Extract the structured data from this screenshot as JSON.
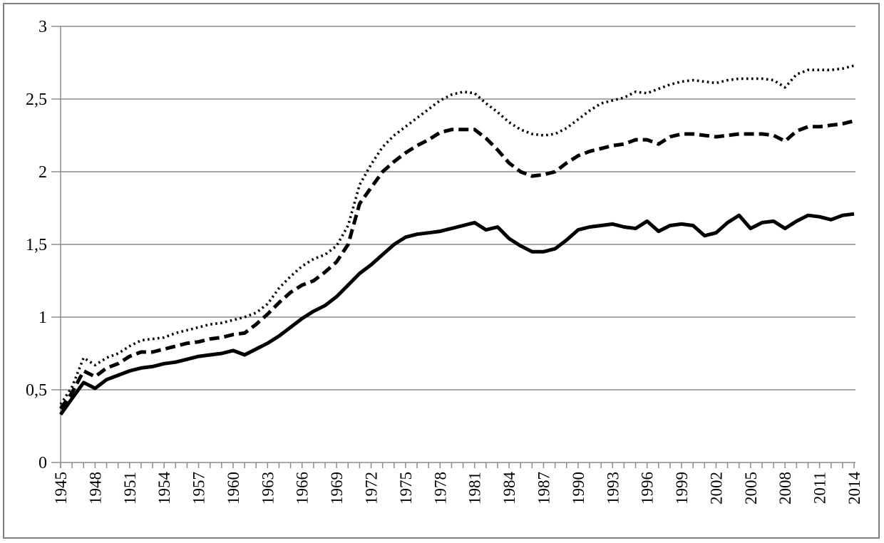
{
  "chart_data": {
    "type": "line",
    "title": "",
    "xlabel": "",
    "ylabel": "",
    "x_start": 1945,
    "x_end": 2014,
    "x_step": 1,
    "x_axis_labels": [
      "1945",
      "1948",
      "1951",
      "1954",
      "1957",
      "1960",
      "1963",
      "1966",
      "1969",
      "1972",
      "1975",
      "1978",
      "1981",
      "1984",
      "1987",
      "1990",
      "1993",
      "1996",
      "1999",
      "2002",
      "2005",
      "2008",
      "2011",
      "2014"
    ],
    "x_label_interval_years": 3,
    "y_axis_labels": [
      "0",
      "0,5",
      "1",
      "1,5",
      "2",
      "2,5",
      "3"
    ],
    "y_gridline_values": [
      0,
      0.5,
      1,
      1.5,
      2,
      2.5,
      3
    ],
    "ylim": [
      0,
      3
    ],
    "grid": true,
    "legend": "none",
    "decimal_separator": ",",
    "series": [
      {
        "name": "solid-line-series",
        "style": "solid",
        "values": [
          0.33,
          0.44,
          0.55,
          0.51,
          0.57,
          0.6,
          0.63,
          0.65,
          0.66,
          0.68,
          0.69,
          0.71,
          0.73,
          0.74,
          0.75,
          0.77,
          0.74,
          0.78,
          0.82,
          0.87,
          0.93,
          0.99,
          1.04,
          1.08,
          1.14,
          1.22,
          1.3,
          1.36,
          1.43,
          1.5,
          1.55,
          1.57,
          1.58,
          1.59,
          1.61,
          1.63,
          1.65,
          1.6,
          1.62,
          1.54,
          1.49,
          1.45,
          1.45,
          1.47,
          1.53,
          1.6,
          1.62,
          1.63,
          1.64,
          1.62,
          1.61,
          1.66,
          1.59,
          1.63,
          1.64,
          1.63,
          1.56,
          1.58,
          1.65,
          1.7,
          1.61,
          1.65,
          1.66,
          1.61,
          1.66,
          1.7,
          1.69,
          1.67,
          1.7,
          1.71
        ]
      },
      {
        "name": "dashed-line-series",
        "style": "dashed",
        "values": [
          0.37,
          0.48,
          0.63,
          0.59,
          0.65,
          0.68,
          0.73,
          0.76,
          0.76,
          0.78,
          0.8,
          0.82,
          0.83,
          0.85,
          0.86,
          0.88,
          0.89,
          0.95,
          1.02,
          1.1,
          1.17,
          1.22,
          1.25,
          1.31,
          1.38,
          1.5,
          1.78,
          1.89,
          2.0,
          2.07,
          2.13,
          2.18,
          2.22,
          2.27,
          2.29,
          2.29,
          2.29,
          2.23,
          2.15,
          2.06,
          2.0,
          1.97,
          1.98,
          2.0,
          2.06,
          2.11,
          2.14,
          2.16,
          2.18,
          2.19,
          2.22,
          2.22,
          2.19,
          2.24,
          2.26,
          2.26,
          2.25,
          2.24,
          2.25,
          2.26,
          2.26,
          2.26,
          2.25,
          2.21,
          2.28,
          2.31,
          2.31,
          2.32,
          2.33,
          2.35
        ]
      },
      {
        "name": "dotted-line-series",
        "style": "dotted",
        "values": [
          0.4,
          0.52,
          0.72,
          0.67,
          0.72,
          0.75,
          0.8,
          0.84,
          0.85,
          0.86,
          0.89,
          0.91,
          0.93,
          0.95,
          0.96,
          0.98,
          1.0,
          1.03,
          1.09,
          1.2,
          1.28,
          1.35,
          1.4,
          1.43,
          1.49,
          1.63,
          1.91,
          2.05,
          2.17,
          2.25,
          2.31,
          2.37,
          2.43,
          2.49,
          2.53,
          2.55,
          2.54,
          2.47,
          2.41,
          2.34,
          2.29,
          2.26,
          2.25,
          2.26,
          2.3,
          2.36,
          2.42,
          2.47,
          2.49,
          2.51,
          2.55,
          2.54,
          2.57,
          2.6,
          2.62,
          2.63,
          2.62,
          2.61,
          2.63,
          2.64,
          2.64,
          2.64,
          2.63,
          2.58,
          2.67,
          2.7,
          2.7,
          2.7,
          2.71,
          2.73
        ]
      }
    ],
    "colors": {
      "line": "#000000",
      "axis": "#8c8c8c",
      "grid": "#8c8c8c",
      "frame_border": "#7f7f7f",
      "background": "#ffffff",
      "label_text": "#000000"
    }
  }
}
